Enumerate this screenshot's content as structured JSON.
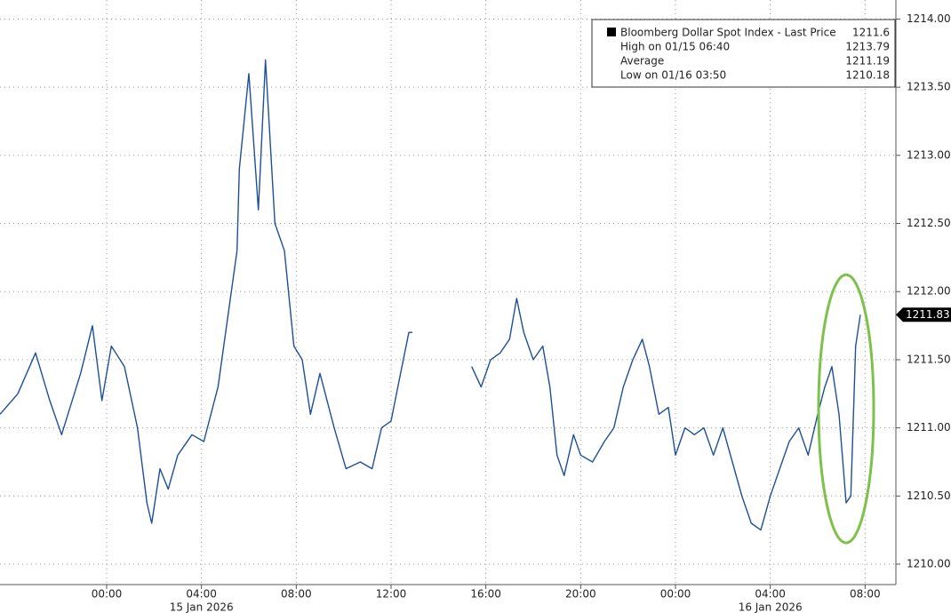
{
  "chart_data": {
    "type": "line",
    "series": [
      {
        "name": "Bloomberg Dollar Spot Index - Last Price",
        "color": "#1d4f9a",
        "x": [
          -4.5,
          -3.75,
          -3,
          -2.4,
          -1.9,
          -1.1,
          -0.6,
          -0.2,
          0.2,
          0.75,
          1.3,
          1.7,
          1.9,
          2.25,
          2.6,
          3.0,
          3.6,
          4.1,
          4.7,
          5.1,
          5.5,
          5.6,
          6.0,
          6.4,
          6.7,
          7.1,
          7.5,
          7.9,
          8.25,
          8.6,
          9.0,
          9.6,
          10.1,
          10.7,
          11.2,
          11.6,
          12.0,
          12.4,
          12.75,
          12.9,
          14.0,
          15.4,
          15.8,
          16.2,
          16.6,
          17.0,
          17.3,
          17.6,
          18.0,
          18.4,
          18.7,
          19.0,
          19.3,
          19.7,
          20.0,
          20.5,
          21.0,
          21.4,
          21.8,
          22.2,
          22.6,
          22.9,
          23.3,
          23.7,
          24.0,
          24.4,
          24.8,
          25.2,
          25.6,
          26.0,
          26.4,
          26.8,
          27.2,
          27.6,
          28.0,
          28.4,
          28.8,
          29.2,
          29.6,
          30.0,
          30.3,
          30.6,
          30.9,
          31.2,
          31.4,
          31.6,
          31.8
        ],
        "values": [
          1211.1,
          1211.25,
          1211.55,
          1211.2,
          1210.95,
          1211.4,
          1211.75,
          1211.2,
          1211.6,
          1211.45,
          1211.0,
          1210.45,
          1210.3,
          1210.7,
          1210.55,
          1210.8,
          1210.95,
          1210.9,
          1211.3,
          1211.8,
          1212.3,
          1212.9,
          1213.6,
          1212.6,
          1213.7,
          1212.5,
          1212.3,
          1211.6,
          1211.5,
          1211.1,
          1211.4,
          1211.0,
          1210.7,
          1210.75,
          1210.7,
          1211.0,
          1211.05,
          1211.4,
          1211.7,
          1211.7,
          null,
          1211.45,
          1211.3,
          1211.5,
          1211.55,
          1211.65,
          1211.95,
          1211.7,
          1211.5,
          1211.6,
          1211.3,
          1210.8,
          1210.65,
          1210.95,
          1210.8,
          1210.75,
          1210.9,
          1211.0,
          1211.3,
          1211.5,
          1211.65,
          1211.45,
          1211.1,
          1211.15,
          1210.8,
          1211.0,
          1210.95,
          1211.0,
          1210.8,
          1211.0,
          1210.75,
          1210.5,
          1210.3,
          1210.25,
          1210.5,
          1210.7,
          1210.9,
          1211.0,
          1210.8,
          1211.1,
          1211.3,
          1211.45,
          1211.1,
          1210.45,
          1210.5,
          1211.6,
          1211.83
        ]
      }
    ],
    "xlim": [
      -4.5,
      33.3
    ],
    "xticks": [
      {
        "value": 0,
        "label": "00:00"
      },
      {
        "value": 4,
        "label": "04:00"
      },
      {
        "value": 8,
        "label": "08:00"
      },
      {
        "value": 12,
        "label": "12:00"
      },
      {
        "value": 16,
        "label": "16:00"
      },
      {
        "value": 20,
        "label": "20:00"
      },
      {
        "value": 24,
        "label": "00:00"
      },
      {
        "value": 28,
        "label": "04:00"
      },
      {
        "value": 32,
        "label": "08:00"
      }
    ],
    "date_labels": [
      {
        "value": 4,
        "label": "15 Jan 2026"
      },
      {
        "value": 28,
        "label": "16 Jan 2026"
      }
    ],
    "ylim": [
      1209.85,
      1214.14
    ],
    "yticks": [
      {
        "value": 1210,
        "label": "1210.00"
      },
      {
        "value": 1210.5,
        "label": "1210.50"
      },
      {
        "value": 1211,
        "label": "1211.00"
      },
      {
        "value": 1211.5,
        "label": "1211.50"
      },
      {
        "value": 1212,
        "label": "1212.00"
      },
      {
        "value": 1212.5,
        "label": "1212.50"
      },
      {
        "value": 1213,
        "label": "1213.00"
      },
      {
        "value": 1213.5,
        "label": "1213.50"
      },
      {
        "value": 1214,
        "label": "1214.00"
      }
    ],
    "grid": true,
    "legend": {
      "stats": [
        {
          "label": "High on 01/15 06:40",
          "value": 1213.79
        },
        {
          "label": "Average",
          "value": 1211.19
        },
        {
          "label": "Low on 01/16 03:50",
          "value": 1210.18
        }
      ]
    },
    "legend_position": "upper right",
    "highlight_color": "#7cc24a"
  }
}
